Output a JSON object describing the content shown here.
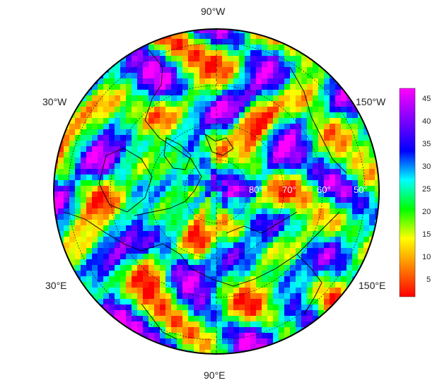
{
  "map": {
    "projection": "north polar stereographic",
    "longitude_labels": {
      "top": "90°W",
      "upper_left": "30°W",
      "upper_right": "150°W",
      "lower_left": "30°E",
      "lower_right": "150°E",
      "bottom": "90°E"
    },
    "latitude_labels": [
      "80°",
      "70°",
      "60°",
      "50°"
    ],
    "colors": {
      "coastline": "#000000",
      "graticule": "#000000",
      "rim": "#000000"
    }
  },
  "colorbar": {
    "ticks": [
      "45",
      "40",
      "35",
      "30",
      "25",
      "20",
      "15",
      "10",
      "5"
    ],
    "range": [
      1,
      47
    ],
    "palette": [
      "#ff0000",
      "#ff8000",
      "#ffff00",
      "#00ff00",
      "#00ffff",
      "#0000ff",
      "#8000ff",
      "#ff00ff"
    ]
  }
}
